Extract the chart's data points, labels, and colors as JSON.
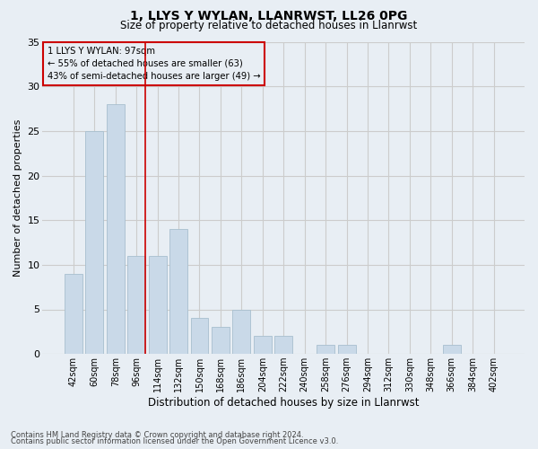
{
  "title": "1, LLYS Y WYLAN, LLANRWST, LL26 0PG",
  "subtitle": "Size of property relative to detached houses in Llanrwst",
  "xlabel": "Distribution of detached houses by size in Llanrwst",
  "ylabel": "Number of detached properties",
  "categories": [
    "42sqm",
    "60sqm",
    "78sqm",
    "96sqm",
    "114sqm",
    "132sqm",
    "150sqm",
    "168sqm",
    "186sqm",
    "204sqm",
    "222sqm",
    "240sqm",
    "258sqm",
    "276sqm",
    "294sqm",
    "312sqm",
    "330sqm",
    "348sqm",
    "366sqm",
    "384sqm",
    "402sqm"
  ],
  "values": [
    9,
    25,
    28,
    11,
    11,
    14,
    4,
    3,
    5,
    2,
    2,
    0,
    1,
    1,
    0,
    0,
    0,
    0,
    1,
    0,
    0
  ],
  "bar_color": "#c9d9e8",
  "bar_edge_color": "#a8bfcf",
  "highlight_line_color": "#cc0000",
  "box_text_line1": "1 LLYS Y WYLAN: 97sqm",
  "box_text_line2": "← 55% of detached houses are smaller (63)",
  "box_text_line3": "43% of semi-detached houses are larger (49) →",
  "box_color": "#cc0000",
  "ylim": [
    0,
    35
  ],
  "yticks": [
    0,
    5,
    10,
    15,
    20,
    25,
    30,
    35
  ],
  "grid_color": "#cccccc",
  "bg_color": "#e8eef4",
  "footnote1": "Contains HM Land Registry data © Crown copyright and database right 2024.",
  "footnote2": "Contains public sector information licensed under the Open Government Licence v3.0."
}
